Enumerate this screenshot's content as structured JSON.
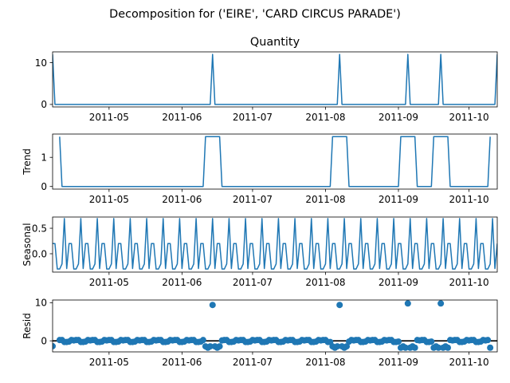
{
  "figure": {
    "suptitle": "Decomposition for ('EIRE', 'CARD CIRCUS PARADE')"
  },
  "colors": {
    "series": "#1f77b4",
    "axis": "#000000",
    "zero_line": "#000000"
  },
  "chart_data": [
    {
      "type": "line",
      "panel": "observed",
      "title": "Quantity",
      "ylabel": "",
      "x_range": [
        "2011-04-07",
        "2011-10-13"
      ],
      "x_ticks": [
        "2011-05-01",
        "2011-06-01",
        "2011-07-01",
        "2011-08-01",
        "2011-09-01",
        "2011-10-01"
      ],
      "x_tick_labels": [
        "2011-05",
        "2011-06",
        "2011-07",
        "2011-08",
        "2011-09",
        "2011-10"
      ],
      "ylim": [
        -0.6,
        12.6
      ],
      "y_ticks": [
        0,
        10
      ],
      "points": [
        {
          "x": "2011-04-07",
          "y": 12
        },
        {
          "x": "2011-04-08",
          "y": 0
        },
        {
          "x": "2011-06-13",
          "y": 0
        },
        {
          "x": "2011-06-14",
          "y": 12
        },
        {
          "x": "2011-06-15",
          "y": 0
        },
        {
          "x": "2011-08-06",
          "y": 0
        },
        {
          "x": "2011-08-07",
          "y": 12
        },
        {
          "x": "2011-08-08",
          "y": 0
        },
        {
          "x": "2011-09-04",
          "y": 0
        },
        {
          "x": "2011-09-05",
          "y": 12
        },
        {
          "x": "2011-09-06",
          "y": 0
        },
        {
          "x": "2011-09-18",
          "y": 0
        },
        {
          "x": "2011-09-19",
          "y": 12
        },
        {
          "x": "2011-09-20",
          "y": 0
        },
        {
          "x": "2011-10-12",
          "y": 0
        },
        {
          "x": "2011-10-13",
          "y": 12
        }
      ]
    },
    {
      "type": "line",
      "panel": "trend",
      "title": "",
      "ylabel": "Trend",
      "x_range": [
        "2011-04-07",
        "2011-10-13"
      ],
      "x_ticks": [
        "2011-05-01",
        "2011-06-01",
        "2011-07-01",
        "2011-08-01",
        "2011-09-01",
        "2011-10-01"
      ],
      "x_tick_labels": [
        "2011-05",
        "2011-06",
        "2011-07",
        "2011-08",
        "2011-09",
        "2011-10"
      ],
      "ylim": [
        -0.09,
        1.8
      ],
      "y_ticks": [
        0,
        1
      ],
      "points": [
        {
          "x": "2011-04-10",
          "y": 1.71
        },
        {
          "x": "2011-04-11",
          "y": 0
        },
        {
          "x": "2011-06-10",
          "y": 0
        },
        {
          "x": "2011-06-11",
          "y": 1.71
        },
        {
          "x": "2011-06-17",
          "y": 1.71
        },
        {
          "x": "2011-06-18",
          "y": 0
        },
        {
          "x": "2011-08-03",
          "y": 0
        },
        {
          "x": "2011-08-04",
          "y": 1.71
        },
        {
          "x": "2011-08-10",
          "y": 1.71
        },
        {
          "x": "2011-08-11",
          "y": 0
        },
        {
          "x": "2011-09-01",
          "y": 0
        },
        {
          "x": "2011-09-02",
          "y": 1.71
        },
        {
          "x": "2011-09-08",
          "y": 1.71
        },
        {
          "x": "2011-09-09",
          "y": 0
        },
        {
          "x": "2011-09-15",
          "y": 0
        },
        {
          "x": "2011-09-16",
          "y": 1.71
        },
        {
          "x": "2011-09-22",
          "y": 1.71
        },
        {
          "x": "2011-09-23",
          "y": 0
        },
        {
          "x": "2011-10-09",
          "y": 0
        },
        {
          "x": "2011-10-10",
          "y": 1.71
        }
      ]
    },
    {
      "type": "line",
      "panel": "seasonal",
      "title": "",
      "ylabel": "Seasonal",
      "x_range": [
        "2011-04-07",
        "2011-10-13"
      ],
      "x_ticks": [
        "2011-05-01",
        "2011-06-01",
        "2011-07-01",
        "2011-08-01",
        "2011-09-01",
        "2011-10-01"
      ],
      "x_tick_labels": [
        "2011-05",
        "2011-06",
        "2011-07",
        "2011-08",
        "2011-09",
        "2011-10"
      ],
      "ylim": [
        -0.36,
        0.72
      ],
      "y_ticks": [
        0.0,
        0.5
      ],
      "y_tick_labels": [
        "0.0",
        "0.5"
      ],
      "period_days": 7,
      "start": "2011-04-07",
      "end": "2011-10-13",
      "pattern": [
        0.2,
        0.2,
        -0.3,
        -0.3,
        -0.2,
        0.69,
        -0.29
      ]
    },
    {
      "type": "scatter",
      "panel": "resid",
      "title": "",
      "ylabel": "Resid",
      "x_range": [
        "2011-04-07",
        "2011-10-13"
      ],
      "x_ticks": [
        "2011-05-01",
        "2011-06-01",
        "2011-07-01",
        "2011-08-01",
        "2011-09-01",
        "2011-10-01"
      ],
      "x_tick_labels": [
        "2011-05",
        "2011-06",
        "2011-07",
        "2011-08",
        "2011-09",
        "2011-10"
      ],
      "ylim": [
        -2.9,
        10.7
      ],
      "y_ticks": [
        0,
        10
      ],
      "zero_line": 0,
      "start": "2011-04-10",
      "end": "2011-10-10",
      "baseline_pattern": [
        0.2,
        0.2,
        -0.3,
        -0.3,
        -0.2,
        0.2,
        0.1
      ],
      "negative_spans": [
        {
          "from": "2011-06-11",
          "to": "2011-06-17",
          "y": -1.6
        },
        {
          "from": "2011-08-04",
          "to": "2011-08-10",
          "y": -1.6
        },
        {
          "from": "2011-09-02",
          "to": "2011-09-08",
          "y": -1.6
        },
        {
          "from": "2011-09-16",
          "to": "2011-09-22",
          "y": -1.6
        },
        {
          "from": "2011-10-10",
          "to": "2011-10-10",
          "y": -1.6
        }
      ],
      "spikes": [
        {
          "x": "2011-06-14",
          "y": 9.4
        },
        {
          "x": "2011-08-07",
          "y": 9.4
        },
        {
          "x": "2011-09-05",
          "y": 9.8
        },
        {
          "x": "2011-09-19",
          "y": 9.8
        }
      ],
      "extra_points": [
        {
          "x": "2011-04-07",
          "y": -1.4
        }
      ]
    }
  ]
}
